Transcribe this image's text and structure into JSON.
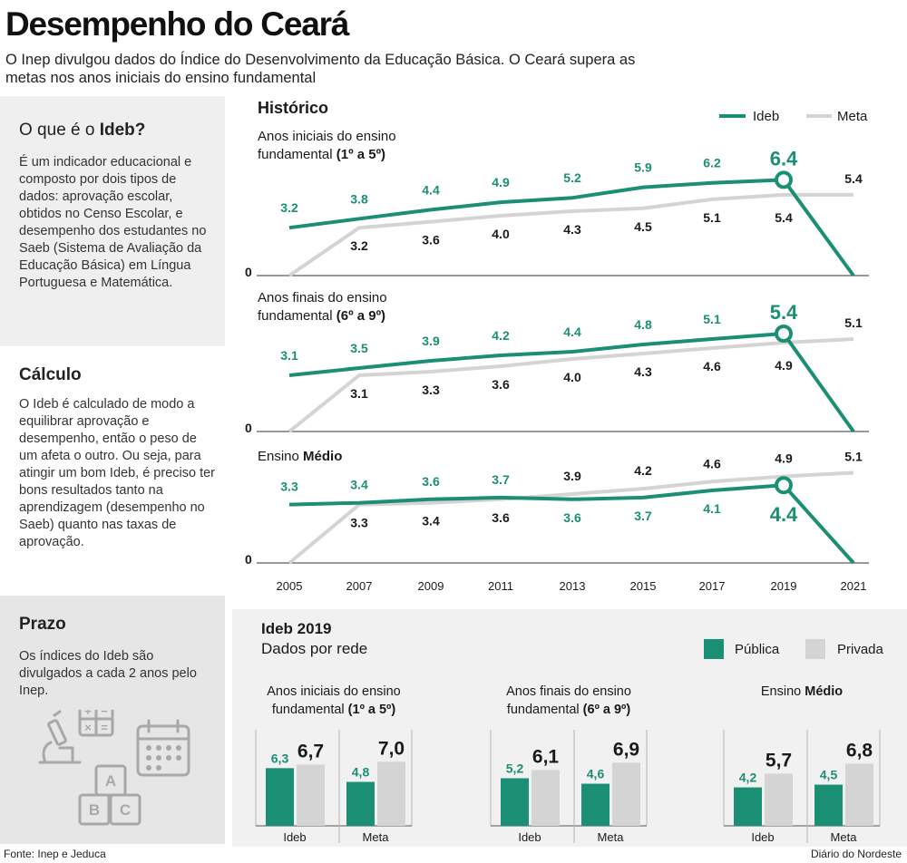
{
  "header": {
    "title": "Desempenho do Ceará",
    "subtitle": "O Inep divulgou dados do Índice do Desenvolvimento da Educação Básica. O Ceará supera as metas nos anos iniciais do ensino fundamental"
  },
  "sidebar": {
    "ideb_heading_pre": "O que é o ",
    "ideb_heading_bold": "Ideb?",
    "ideb_text": "É um indicador educacional e composto por dois tipos de dados: aprovação escolar, obtidos no Censo Escolar, e desempenho dos estudantes no Saeb (Sistema de Avaliação da Educação Básica) em Língua Portuguesa e Matemática.",
    "calculo_heading": "Cálculo",
    "calculo_text": "O Ideb é calculado de modo a equilibrar aprovação e desempenho, então o peso de um afeta o outro. Ou seja, para atingir um bom Ideb, é preciso ter bons resultados tanto na aprendizagem (desempenho no Saeb) quanto nas taxas de aprovação.",
    "prazo_heading": "Prazo",
    "prazo_text": "Os índices do Ideb são divulgados a cada 2 anos pelo Inep.",
    "illustration_letters": [
      "A",
      "B",
      "C"
    ],
    "calculator_symbols": [
      "+",
      "−",
      "×",
      "="
    ]
  },
  "colors": {
    "ideb": "#1a8f74",
    "meta": "#d4d4d4",
    "text": "#1a1a1a"
  },
  "chart_data": [
    {
      "type": "line",
      "title": "Histórico",
      "legend": [
        "Ideb",
        "Meta"
      ],
      "x": [
        "2005",
        "2007",
        "2009",
        "2011",
        "2013",
        "2015",
        "2017",
        "2019",
        "2021"
      ],
      "panels": [
        {
          "label_pre": "Anos iniciais do ensino fundamental ",
          "label_bold": "(1º a 5º)",
          "ideb": [
            3.2,
            3.8,
            4.4,
            4.9,
            5.2,
            5.9,
            6.2,
            6.4,
            0
          ],
          "meta": [
            0,
            3.2,
            3.6,
            4.0,
            4.3,
            4.5,
            5.1,
            5.4,
            5.4
          ],
          "ideb_labels": [
            "3.2",
            "3.8",
            "4.4",
            "4.9",
            "5.2",
            "5.9",
            "6.2",
            "6.4",
            ""
          ],
          "meta_labels": [
            "",
            "3.2",
            "3.6",
            "4.0",
            "4.3",
            "4.5",
            "5.1",
            "5.4",
            "5.4"
          ],
          "ideb_below": false,
          "zero_label": "0"
        },
        {
          "label_pre": "Anos finais do ensino fundamental ",
          "label_bold": "(6º a 9º)",
          "ideb": [
            3.1,
            3.5,
            3.9,
            4.2,
            4.4,
            4.8,
            5.1,
            5.4,
            0
          ],
          "meta": [
            0,
            3.1,
            3.3,
            3.6,
            4.0,
            4.3,
            4.6,
            4.9,
            5.1
          ],
          "ideb_labels": [
            "3.1",
            "3.5",
            "3.9",
            "4.2",
            "4.4",
            "4.8",
            "5.1",
            "5.4",
            ""
          ],
          "meta_labels": [
            "",
            "3.1",
            "3.3",
            "3.6",
            "4.0",
            "4.3",
            "4.6",
            "4.9",
            "5.1"
          ],
          "ideb_below": false,
          "zero_label": "0"
        },
        {
          "label_pre": "Ensino ",
          "label_bold": "Médio",
          "ideb": [
            3.3,
            3.4,
            3.6,
            3.7,
            3.6,
            3.7,
            4.1,
            4.4,
            0
          ],
          "meta": [
            0,
            3.3,
            3.4,
            3.6,
            3.9,
            4.2,
            4.6,
            4.9,
            5.1
          ],
          "ideb_labels": [
            "3.3",
            "3.4",
            "3.6",
            "3.7",
            "3.6",
            "3.7",
            "4.1",
            "4.4",
            ""
          ],
          "meta_labels": [
            "",
            "3.3",
            "3.4",
            "3.6",
            "3.9",
            "4.2",
            "4.6",
            "4.9",
            "5.1"
          ],
          "ideb_below": true,
          "zero_label": "0"
        }
      ]
    },
    {
      "type": "bar",
      "title": "Ideb 2019",
      "subtitle": "Dados por rede",
      "legend": [
        "Pública",
        "Privada"
      ],
      "categories": [
        "Ideb",
        "Meta"
      ],
      "groups": [
        {
          "label_pre": "Anos iniciais do ensino fundamental ",
          "label_bold": "(1º a 5º)",
          "publica": [
            6.3,
            4.8
          ],
          "privada": [
            6.7,
            7.0
          ],
          "publica_labels": [
            "6,3",
            "4,8"
          ],
          "privada_labels": [
            "6,7",
            "7,0"
          ]
        },
        {
          "label_pre": "Anos finais do ensino fundamental ",
          "label_bold": "(6º a 9º)",
          "publica": [
            5.2,
            4.6
          ],
          "privada": [
            6.1,
            6.9
          ],
          "publica_labels": [
            "5,2",
            "4,6"
          ],
          "privada_labels": [
            "6,1",
            "6,9"
          ]
        },
        {
          "label_pre": "Ensino ",
          "label_bold": "Médio",
          "publica": [
            4.2,
            4.5
          ],
          "privada": [
            5.7,
            6.8
          ],
          "publica_labels": [
            "4,2",
            "4,5"
          ],
          "privada_labels": [
            "5,7",
            "6,8"
          ]
        }
      ]
    }
  ],
  "footer": {
    "source": "Fonte: Inep e Jeduca",
    "brand": "Diário do Nordeste"
  }
}
